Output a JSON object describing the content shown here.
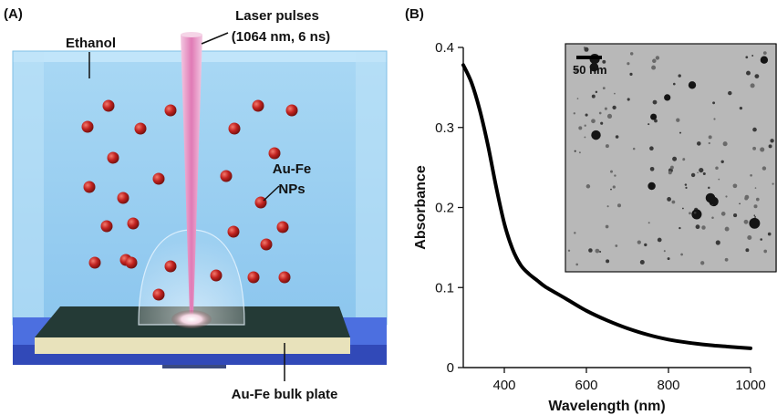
{
  "panel_a": {
    "label": "(A)",
    "annotations": {
      "laser": "Laser pulses",
      "laser_params": "(1064 nm, 6 ns)",
      "solvent": "Ethanol",
      "nps_line1": "Au-Fe",
      "nps_line2": "NPs",
      "target": "Au-Fe bulk plate"
    },
    "colors": {
      "liquid": "#9fd0f0",
      "nanoparticle": "#c0201f",
      "laser_beam": "#e59ac4",
      "plate_top": "#223833",
      "plate_side": "#e9e3be",
      "base": "#3a5fd6"
    }
  },
  "panel_b": {
    "label": "(B)",
    "inset": {
      "scale_bar_label": "50 nm"
    }
  },
  "chart_data": {
    "type": "line",
    "title": "",
    "xlabel": "Wavelength (nm)",
    "ylabel": "Absorbance",
    "xlim": [
      300,
      1000
    ],
    "ylim": [
      0,
      0.4
    ],
    "xticks": [
      400,
      600,
      800,
      1000
    ],
    "yticks": [
      0,
      0.1,
      0.2,
      0.3,
      0.4
    ],
    "tick_labels_x": [
      "400",
      "600",
      "800",
      "1000"
    ],
    "tick_labels_y": [
      "0",
      "0.1",
      "0.2",
      "0.3",
      "0.4"
    ],
    "grid": false,
    "series": [
      {
        "x": [
          300,
          320,
          340,
          360,
          380,
          400,
          420,
          440,
          460,
          480,
          500,
          550,
          600,
          650,
          700,
          750,
          800,
          850,
          900,
          950,
          1000
        ],
        "y": [
          0.378,
          0.356,
          0.322,
          0.278,
          0.226,
          0.18,
          0.148,
          0.128,
          0.117,
          0.109,
          0.101,
          0.086,
          0.071,
          0.059,
          0.049,
          0.041,
          0.035,
          0.031,
          0.028,
          0.026,
          0.024
        ],
        "color": "#000000"
      }
    ]
  }
}
